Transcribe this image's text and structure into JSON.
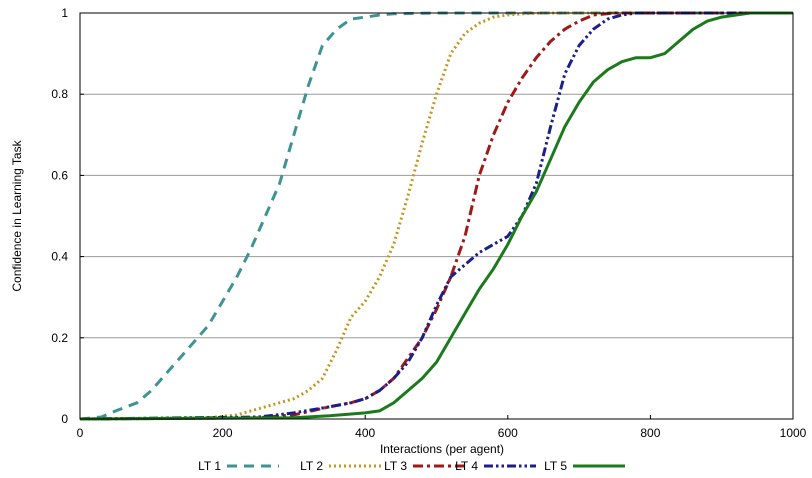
{
  "chart_data": {
    "type": "line",
    "xlabel": "Interactions (per agent)",
    "ylabel": "Confidence in Learning Task",
    "xlim": [
      0,
      1000
    ],
    "ylim": [
      0,
      1
    ],
    "xticks": [
      "0",
      "200",
      "400",
      "600",
      "800",
      "1000"
    ],
    "yticks": [
      "0",
      "0.2",
      "0.4",
      "0.6",
      "0.8",
      "1"
    ],
    "grid": "horizontal",
    "legend_position": "bottom",
    "series": [
      {
        "name": "LT 1",
        "color": "#3f9393",
        "dash": "dashed",
        "x": [
          0,
          30,
          50,
          80,
          100,
          120,
          150,
          180,
          200,
          220,
          240,
          260,
          280,
          300,
          320,
          340,
          360,
          380,
          400,
          420,
          440,
          470,
          500,
          1000
        ],
        "y": [
          0,
          0.005,
          0.02,
          0.04,
          0.07,
          0.11,
          0.17,
          0.23,
          0.29,
          0.35,
          0.42,
          0.5,
          0.58,
          0.7,
          0.82,
          0.92,
          0.96,
          0.985,
          0.99,
          0.995,
          0.998,
          0.999,
          1,
          1
        ]
      },
      {
        "name": "LT 2",
        "color": "#c8961e",
        "dash": "dotted",
        "x": [
          0,
          180,
          220,
          260,
          300,
          320,
          340,
          360,
          380,
          400,
          420,
          440,
          460,
          480,
          500,
          520,
          540,
          560,
          580,
          600,
          620,
          650,
          700,
          1000
        ],
        "y": [
          0,
          0.003,
          0.01,
          0.03,
          0.05,
          0.07,
          0.1,
          0.17,
          0.25,
          0.29,
          0.35,
          0.43,
          0.55,
          0.68,
          0.8,
          0.9,
          0.95,
          0.975,
          0.99,
          0.995,
          0.998,
          1,
          1,
          1
        ]
      },
      {
        "name": "LT 3",
        "color": "#a01818",
        "dash": "dashdot",
        "x": [
          0,
          250,
          300,
          350,
          380,
          400,
          420,
          440,
          460,
          480,
          500,
          520,
          540,
          560,
          580,
          600,
          620,
          640,
          660,
          680,
          700,
          720,
          750,
          1000
        ],
        "y": [
          0,
          0.003,
          0.01,
          0.03,
          0.04,
          0.05,
          0.07,
          0.1,
          0.15,
          0.2,
          0.27,
          0.35,
          0.45,
          0.6,
          0.7,
          0.78,
          0.84,
          0.89,
          0.93,
          0.96,
          0.98,
          0.995,
          1,
          1
        ]
      },
      {
        "name": "LT 4",
        "color": "#1a1f8a",
        "dash": "dashdotdot",
        "x": [
          0,
          250,
          300,
          350,
          380,
          400,
          420,
          440,
          460,
          480,
          500,
          520,
          540,
          560,
          580,
          600,
          620,
          640,
          660,
          680,
          700,
          720,
          740,
          760,
          780,
          800,
          1000
        ],
        "y": [
          0,
          0.005,
          0.015,
          0.03,
          0.04,
          0.05,
          0.07,
          0.1,
          0.14,
          0.2,
          0.28,
          0.35,
          0.38,
          0.41,
          0.43,
          0.45,
          0.5,
          0.58,
          0.72,
          0.85,
          0.92,
          0.96,
          0.985,
          0.995,
          1,
          1,
          1
        ]
      },
      {
        "name": "LT 5",
        "color": "#1b7a1b",
        "dash": "solid",
        "x": [
          0,
          300,
          350,
          400,
          420,
          440,
          460,
          480,
          500,
          520,
          540,
          560,
          580,
          600,
          620,
          640,
          660,
          680,
          700,
          720,
          740,
          760,
          780,
          800,
          820,
          840,
          860,
          880,
          900,
          920,
          940,
          1000
        ],
        "y": [
          0,
          0.003,
          0.008,
          0.015,
          0.02,
          0.04,
          0.07,
          0.1,
          0.14,
          0.2,
          0.26,
          0.32,
          0.37,
          0.43,
          0.5,
          0.56,
          0.64,
          0.72,
          0.78,
          0.83,
          0.86,
          0.88,
          0.89,
          0.89,
          0.9,
          0.93,
          0.96,
          0.98,
          0.99,
          0.995,
          1,
          1
        ]
      }
    ]
  }
}
